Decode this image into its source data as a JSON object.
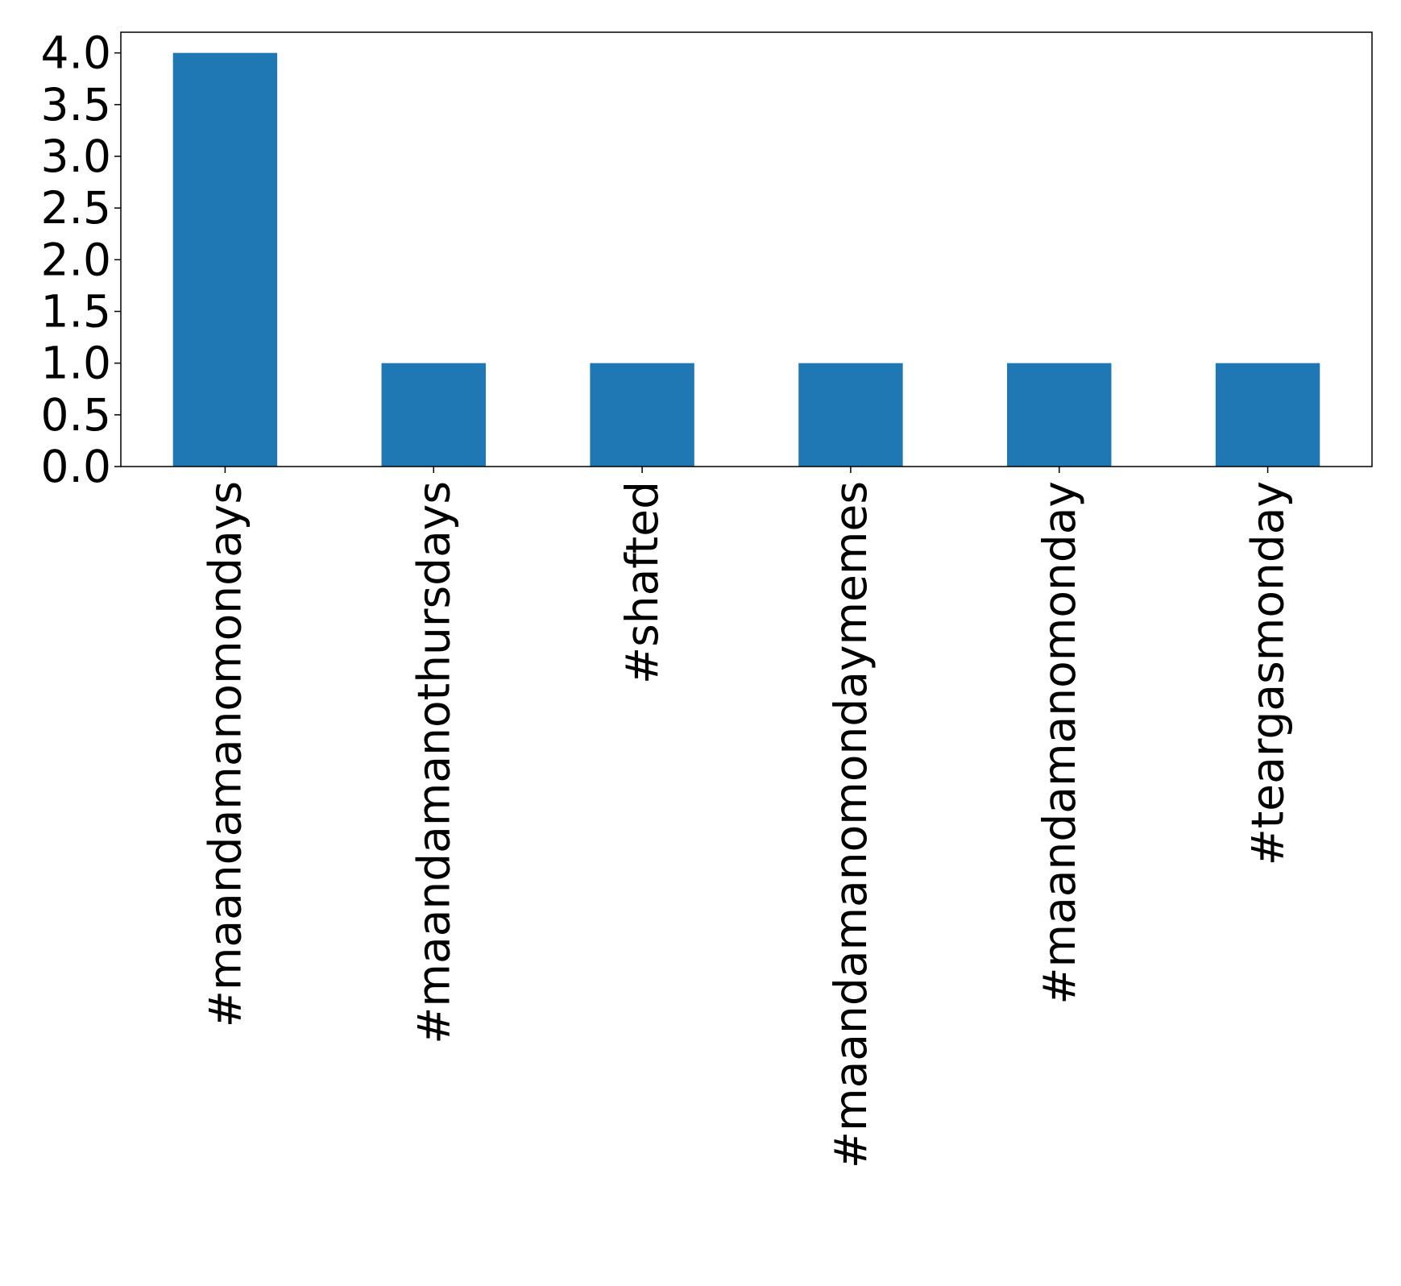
{
  "chart_data": {
    "type": "bar",
    "categories": [
      "#maandamanomondays",
      "#maandamanothursdays",
      "#shafted",
      "#maandamanomondaymemes",
      "#maandamanomonday",
      "#teargasmonday"
    ],
    "values": [
      4,
      1,
      1,
      1,
      1,
      1
    ],
    "title": "",
    "xlabel": "",
    "ylabel": "",
    "ylim": [
      0,
      4.2
    ],
    "yticks": [
      "0.0",
      "0.5",
      "1.0",
      "1.5",
      "2.0",
      "2.5",
      "3.0",
      "3.5",
      "4.0"
    ],
    "grid": false,
    "bar_color": "#1f77b4"
  }
}
